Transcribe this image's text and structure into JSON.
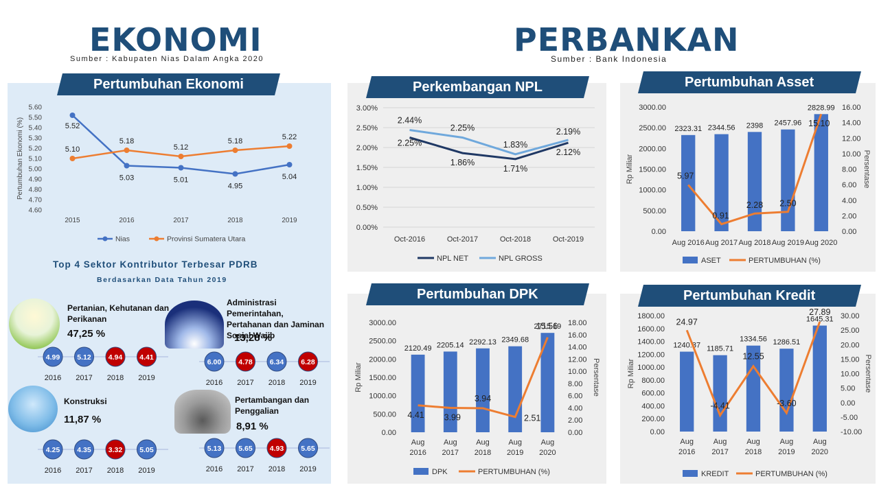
{
  "header": {
    "left_title": "EKONOMI",
    "left_source": "Sumber : Kabupaten Nias Dalam Angka 2020",
    "right_title": "PERBANKAN",
    "right_source": "Sumber : Bank Indonesia"
  },
  "colors": {
    "blue": "#4472c4",
    "orange": "#ed7d31",
    "navy": "#1f4e79",
    "red": "#c00000",
    "dark_line": "#1f3864",
    "light_line": "#6fa8dc"
  },
  "banners": {
    "ekonomi": "Pertumbuhan Ekonomi",
    "npl": "Perkembangan NPL",
    "asset": "Pertumbuhan Asset",
    "dpk": "Pertumbuhan DPK",
    "kredit": "Pertumbuhan Kredit"
  },
  "sektor": {
    "title": "Top 4 Sektor Kontributor Terbesar PDRB",
    "subtitle": "Berdasarkan Data Tahun 2019",
    "items": [
      {
        "name": "Pertanian, Kehutanan dan Perikanan",
        "pct": "47,25 %",
        "icon": "farm-icon",
        "years": [
          "2016",
          "2017",
          "2018",
          "2019"
        ],
        "values": [
          "4.99",
          "5.12",
          "4.94",
          "4.41"
        ],
        "colors": [
          "#4472c4",
          "#4472c4",
          "#c00000",
          "#c00000"
        ]
      },
      {
        "name": "Administrasi Pemerintahan, Pertahanan dan Jaminan Sosial Wajib",
        "pct": "13,28 %",
        "icon": "government-building-icon",
        "years": [
          "2016",
          "2017",
          "2018",
          "2019"
        ],
        "values": [
          "6.00",
          "4.78",
          "6.34",
          "6.28"
        ],
        "colors": [
          "#4472c4",
          "#c00000",
          "#4472c4",
          "#c00000"
        ]
      },
      {
        "name": "Konstruksi",
        "pct": "11,87 %",
        "icon": "construction-icon",
        "years": [
          "2016",
          "2017",
          "2018",
          "2019"
        ],
        "values": [
          "4.25",
          "4.35",
          "3.32",
          "5.05"
        ],
        "colors": [
          "#4472c4",
          "#4472c4",
          "#c00000",
          "#4472c4"
        ]
      },
      {
        "name": "Pertambangan dan Penggalian",
        "pct": "8,91 %",
        "icon": "mining-icon",
        "years": [
          "2016",
          "2017",
          "2018",
          "2019"
        ],
        "values": [
          "5.13",
          "5.65",
          "4.93",
          "5.65"
        ],
        "colors": [
          "#4472c4",
          "#4472c4",
          "#c00000",
          "#4472c4"
        ]
      }
    ]
  },
  "chart_data": [
    {
      "id": "ekonomi",
      "type": "line",
      "x": [
        "2015",
        "2016",
        "2017",
        "2018",
        "2019"
      ],
      "ylabel": "Pertumbuhan Ekonomi (%)",
      "ylim": [
        4.6,
        5.6
      ],
      "yticks": [
        "4.60",
        "4.70",
        "4.80",
        "4.90",
        "5.00",
        "5.10",
        "5.20",
        "5.30",
        "5.40",
        "5.50",
        "5.60"
      ],
      "series": [
        {
          "name": "Nias",
          "values": [
            5.52,
            5.03,
            5.01,
            4.95,
            5.04
          ],
          "labels": [
            "5.52",
            "5.03",
            "5.01",
            "4.95",
            "5.04"
          ],
          "color": "#4472c4"
        },
        {
          "name": "Provinsi Sumatera Utara",
          "values": [
            5.1,
            5.18,
            5.12,
            5.18,
            5.22
          ],
          "labels": [
            "5.10",
            "5.18",
            "5.12",
            "5.18",
            "5.22"
          ],
          "color": "#ed7d31"
        }
      ],
      "legend": "bottom",
      "grid": false
    },
    {
      "id": "npl",
      "type": "line",
      "x": [
        "Oct-2016",
        "Oct-2017",
        "Oct-2018",
        "Oct-2019"
      ],
      "ylim": [
        0,
        0.03
      ],
      "yticks": [
        "0.00%",
        "0.50%",
        "1.00%",
        "1.50%",
        "2.00%",
        "2.50%",
        "3.00%"
      ],
      "series": [
        {
          "name": "NPL NET",
          "values": [
            2.25,
            1.86,
            1.71,
            2.12
          ],
          "labels": [
            "2.25%",
            "1.86%",
            "1.71%",
            "2.12%"
          ],
          "color": "#1f3864"
        },
        {
          "name": "NPL GROSS",
          "values": [
            2.44,
            2.25,
            1.83,
            2.19
          ],
          "labels": [
            "2.44%",
            "2.25%",
            "1.83%",
            "2.19%"
          ],
          "color": "#6fa8dc"
        }
      ],
      "legend": "bottom",
      "grid": true
    },
    {
      "id": "asset",
      "type": "bar-line",
      "x": [
        "Aug 2016",
        "Aug 2017",
        "Aug 2018",
        "Aug 2019",
        "Aug 2020"
      ],
      "ylabel": "Rp Miliar",
      "y2label": "Persentase",
      "ylim": [
        0,
        3000
      ],
      "y2lim": [
        0,
        16
      ],
      "yticks": [
        "0.00",
        "500.00",
        "1000.00",
        "1500.00",
        "2000.00",
        "2500.00",
        "3000.00"
      ],
      "y2ticks": [
        "0.00",
        "2.00",
        "4.00",
        "6.00",
        "8.00",
        "10.00",
        "12.00",
        "14.00",
        "16.00"
      ],
      "bars": {
        "name": "ASET",
        "values": [
          2323.31,
          2344.56,
          2398,
          2457.96,
          2828.99
        ],
        "labels": [
          "2323.31",
          "2344.56",
          "2398",
          "2457.96",
          "2828.99"
        ]
      },
      "line": {
        "name": "PERTUMBUHAN (%)",
        "values": [
          5.97,
          0.91,
          2.28,
          2.5,
          15.1
        ],
        "labels": [
          "5.97",
          "0.91",
          "2.28",
          "2.50",
          "15.10"
        ]
      },
      "legend": "bottom"
    },
    {
      "id": "dpk",
      "type": "bar-line",
      "x": [
        "Aug 2016",
        "Aug 2017",
        "Aug 2018",
        "Aug 2019",
        "Aug 2020"
      ],
      "x_lines": [
        [
          "Aug",
          "2016"
        ],
        [
          "Aug",
          "2017"
        ],
        [
          "Aug",
          "2018"
        ],
        [
          "Aug",
          "2019"
        ],
        [
          "Aug",
          "2020"
        ]
      ],
      "ylabel": "Rp Miliar",
      "y2label": "Persentase",
      "ylim": [
        0,
        3000
      ],
      "y2lim": [
        0,
        18
      ],
      "yticks": [
        "0.00",
        "500.00",
        "1000.00",
        "1500.00",
        "2000.00",
        "2500.00",
        "3000.00"
      ],
      "y2ticks": [
        "0.00",
        "2.00",
        "4.00",
        "6.00",
        "8.00",
        "10.00",
        "12.00",
        "14.00",
        "16.00",
        "18.00"
      ],
      "bars": {
        "name": "DPK",
        "values": [
          2120.49,
          2205.14,
          2292.13,
          2349.68,
          2715.19
        ],
        "labels": [
          "2120.49",
          "2205.14",
          "2292.13",
          "2349.68",
          "2715.19"
        ]
      },
      "line": {
        "name": "PERTUMBUHAN (%)",
        "values": [
          4.41,
          3.99,
          3.94,
          2.51,
          15.56
        ],
        "labels": [
          "4.41",
          "3.99",
          "3.94",
          "2.51",
          "15.56"
        ]
      },
      "legend": "bottom"
    },
    {
      "id": "kredit",
      "type": "bar-line",
      "x": [
        "Aug 2016",
        "Aug 2017",
        "Aug 2018",
        "Aug 2019",
        "Aug 2020"
      ],
      "x_lines": [
        [
          "Aug",
          "2016"
        ],
        [
          "Aug",
          "2017"
        ],
        [
          "Aug",
          "2018"
        ],
        [
          "Aug",
          "2019"
        ],
        [
          "Aug",
          "2020"
        ]
      ],
      "ylabel": "Rp Miliar",
      "y2label": "Persentase",
      "ylim": [
        0,
        1800
      ],
      "y2lim": [
        -10,
        30
      ],
      "yticks": [
        "0.00",
        "200.00",
        "400.00",
        "600.00",
        "800.00",
        "1000.00",
        "1200.00",
        "1400.00",
        "1600.00",
        "1800.00"
      ],
      "y2ticks": [
        "-10.00",
        "-5.00",
        "0.00",
        "5.00",
        "10.00",
        "15.00",
        "20.00",
        "25.00",
        "30.00"
      ],
      "bars": {
        "name": "KREDIT",
        "values": [
          1240.37,
          1185.71,
          1334.56,
          1286.51,
          1645.31
        ],
        "labels": [
          "1240.37",
          "1185.71",
          "1334.56",
          "1286.51",
          "1645.31"
        ]
      },
      "line": {
        "name": "PERTUMBUHAN (%)",
        "values": [
          24.97,
          -4.41,
          12.55,
          -3.6,
          27.89
        ],
        "labels": [
          "24.97",
          "-4.41",
          "12.55",
          "-3.60",
          "27.89"
        ]
      },
      "legend": "bottom"
    }
  ]
}
